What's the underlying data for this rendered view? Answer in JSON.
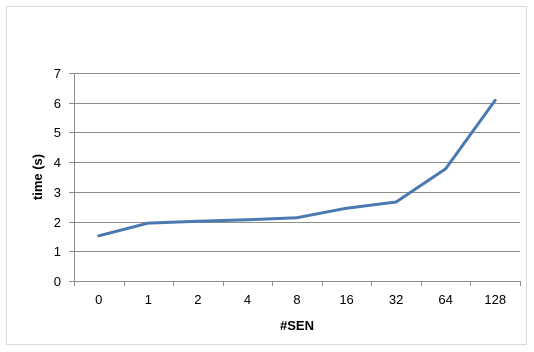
{
  "chart_data": {
    "type": "line",
    "title": "",
    "xlabel": "#SEN",
    "ylabel": "time (s)",
    "categories": [
      "0",
      "1",
      "2",
      "4",
      "8",
      "16",
      "32",
      "64",
      "128"
    ],
    "series": [
      {
        "values": [
          1.52,
          1.95,
          2.01,
          2.06,
          2.13,
          2.45,
          2.66,
          3.78,
          6.08
        ],
        "color": "#4a78b0"
      }
    ],
    "ylim": [
      0,
      7
    ],
    "yticks": [
      0,
      1,
      2,
      3,
      4,
      5,
      6,
      7
    ],
    "grid": true,
    "legend": "none"
  }
}
